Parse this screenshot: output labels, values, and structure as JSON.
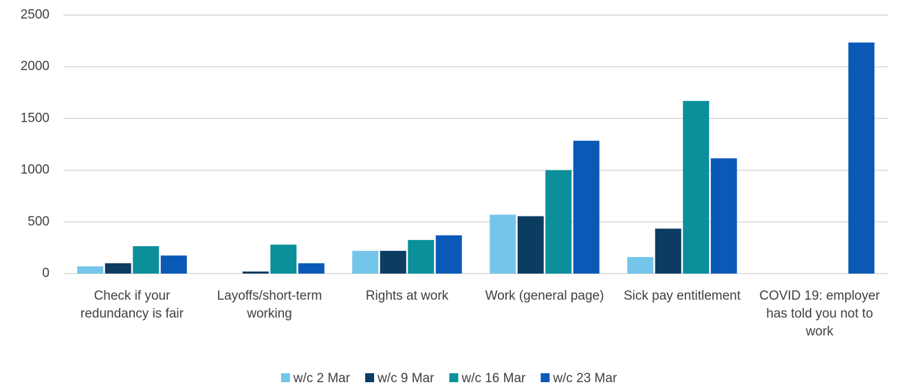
{
  "chart_data": {
    "type": "bar",
    "categories": [
      "Check if your redundancy is fair",
      "Layoffs/short-term working",
      "Rights at work",
      "Work (general page)",
      "Sick pay entitlement",
      "COVID 19: employer has told you not to work"
    ],
    "series": [
      {
        "name": "w/c 2 Mar",
        "color": "#75c5ea",
        "values": [
          70,
          0,
          220,
          570,
          160,
          0
        ]
      },
      {
        "name": "w/c 9 Mar",
        "color": "#0d3c61",
        "values": [
          100,
          20,
          220,
          555,
          435,
          0
        ]
      },
      {
        "name": "w/c 16 Mar",
        "color": "#0a8f9b",
        "values": [
          265,
          280,
          325,
          1000,
          1670,
          0
        ]
      },
      {
        "name": "w/c 23 Mar",
        "color": "#0b59b6",
        "values": [
          175,
          100,
          370,
          1285,
          1115,
          2235
        ]
      }
    ],
    "ylim": [
      0,
      2500
    ],
    "yticks": [
      0,
      500,
      1000,
      1500,
      2000,
      2500
    ],
    "grid": true,
    "legend": "bottom"
  }
}
